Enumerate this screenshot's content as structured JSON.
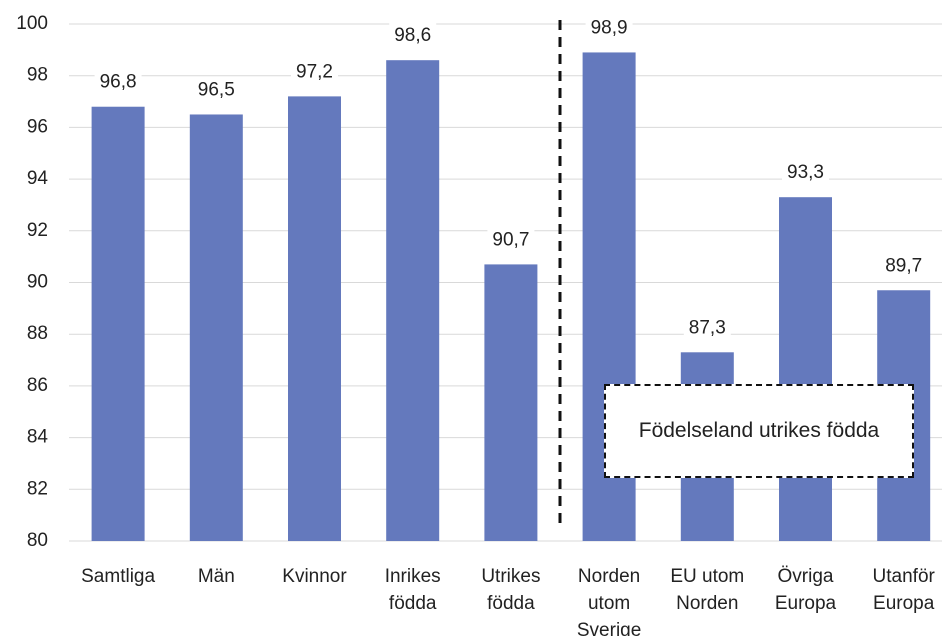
{
  "chart_data": {
    "type": "bar",
    "categories": [
      [
        "Samtliga"
      ],
      [
        "Män"
      ],
      [
        "Kvinnor"
      ],
      [
        "Inrikes",
        "födda"
      ],
      [
        "Utrikes",
        "födda"
      ],
      [
        "Norden",
        "utom",
        "Sverige"
      ],
      [
        "EU utom",
        "Norden"
      ],
      [
        "Övriga",
        "Europa"
      ],
      [
        "Utanför",
        "Europa"
      ]
    ],
    "values": [
      96.8,
      96.5,
      97.2,
      98.6,
      90.7,
      98.9,
      87.3,
      93.3,
      89.7
    ],
    "value_labels": [
      "96,8",
      "96,5",
      "97,2",
      "98,6",
      "90,7",
      "98,9",
      "87,3",
      "93,3",
      "89,7"
    ],
    "color": "#6479bd",
    "ylim": [
      80,
      100
    ],
    "yticks": [
      80,
      82,
      84,
      86,
      88,
      90,
      92,
      94,
      96,
      98,
      100
    ],
    "grid": true,
    "annotation": "Födelseland utrikes födda"
  }
}
